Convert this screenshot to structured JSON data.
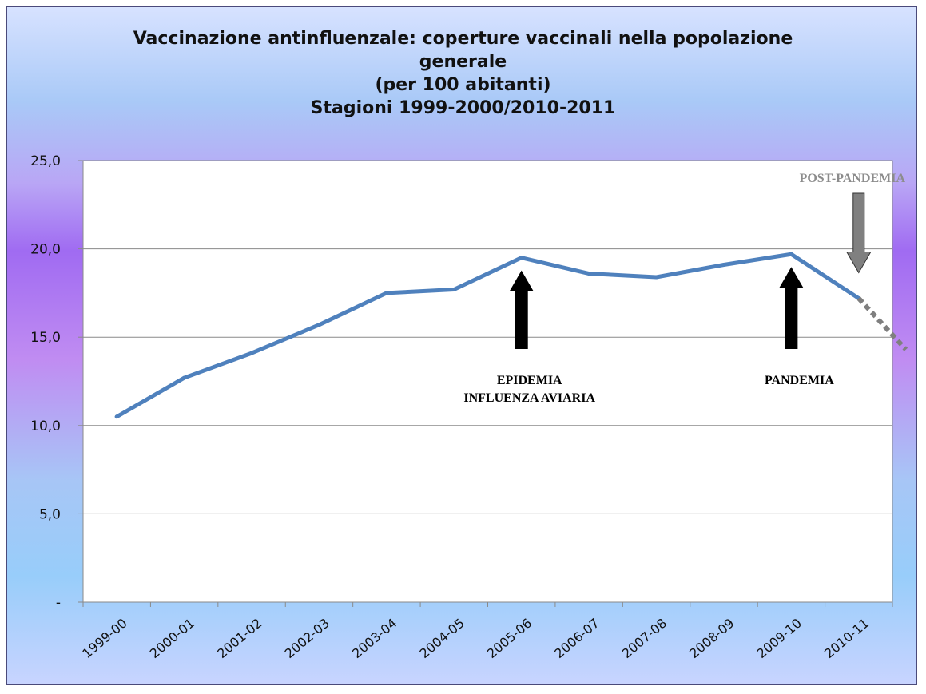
{
  "chart_data": {
    "type": "line",
    "title_lines": [
      "Vaccinazione antinfluenzale: coperture vaccinali nella popolazione",
      "generale",
      "(per 100 abitanti)",
      "Stagioni 1999-2000/2010-2011"
    ],
    "categories": [
      "1999-00",
      "2000-01",
      "2001-02",
      "2002-03",
      "2003-04",
      "2004-05",
      "2005-06",
      "2006-07",
      "2007-08",
      "2008-09",
      "2009-10",
      "2010-11"
    ],
    "series": [
      {
        "values": [
          10.5,
          12.7,
          14.1,
          15.7,
          17.5,
          17.7,
          19.5,
          18.6,
          18.4,
          19.1,
          19.7,
          17.2
        ],
        "color": "#4f81bd"
      }
    ],
    "projection": {
      "from_value": 17.2,
      "to_value": 14.3,
      "style": "dotted",
      "color": "#7f7f7f"
    },
    "ylim": [
      0,
      25
    ],
    "yticks": [
      0,
      5,
      10,
      15,
      20,
      25
    ],
    "ytick_labels": [
      "-",
      "5,0",
      "10,0",
      "15,0",
      "20,0",
      "25,0"
    ],
    "grid": true,
    "annotations": [
      {
        "category_index": 6,
        "lines": [
          "EPIDEMIA",
          "INFLUENZA AVIARIA"
        ],
        "arrow_color": "#000000",
        "label_color": "#000000"
      },
      {
        "category_index": 10,
        "lines": [
          "PANDEMIA"
        ],
        "arrow_color": "#000000",
        "label_color": "#000000"
      },
      {
        "category_index": 11,
        "lines": [
          "POST-PANDEMIA"
        ],
        "arrow_color": "#808080",
        "label_color": "#8c8c8c"
      }
    ]
  }
}
